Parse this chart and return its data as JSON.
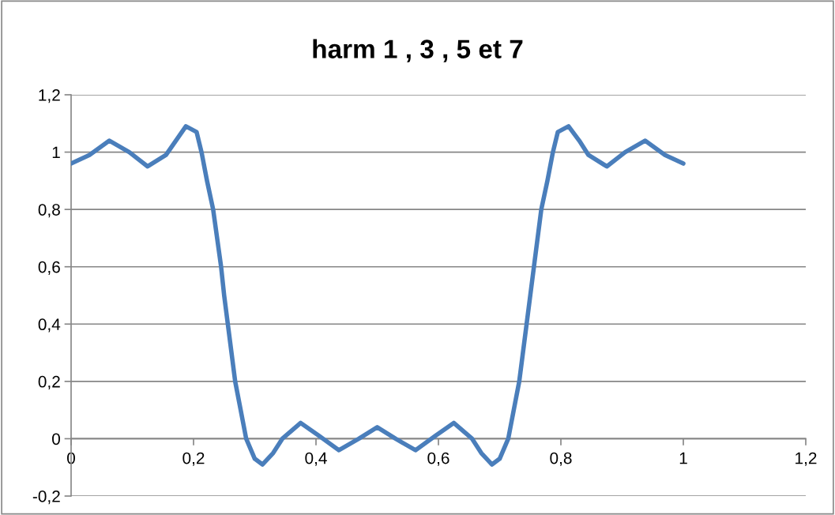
{
  "chart_data": {
    "type": "line",
    "title": "harm 1 , 3 , 5 et 7",
    "x": [
      0,
      0.03,
      0.0625,
      0.095,
      0.125,
      0.155,
      0.1875,
      0.205,
      0.213,
      0.222,
      0.232,
      0.245,
      0.25,
      0.256,
      0.268,
      0.286,
      0.3,
      0.3125,
      0.33,
      0.345,
      0.375,
      0.405,
      0.4375,
      0.47,
      0.5,
      0.53,
      0.5625,
      0.595,
      0.625,
      0.655,
      0.67,
      0.6875,
      0.7,
      0.714,
      0.732,
      0.744,
      0.75,
      0.756,
      0.768,
      0.778,
      0.787,
      0.795,
      0.8125,
      0.83,
      0.845,
      0.875,
      0.905,
      0.9375,
      0.97,
      1
    ],
    "series": [
      {
        "color": "#4a7ebb",
        "values": [
          0.96,
          0.99,
          1.04,
          1.0,
          0.95,
          0.99,
          1.09,
          1.07,
          1.0,
          0.9,
          0.8,
          0.6,
          0.5,
          0.4,
          0.2,
          0.0,
          -0.07,
          -0.09,
          -0.05,
          0.0,
          0.055,
          0.01,
          -0.04,
          0.0,
          0.04,
          0.0,
          -0.04,
          0.01,
          0.055,
          0.0,
          -0.05,
          -0.09,
          -0.07,
          0.0,
          0.2,
          0.4,
          0.5,
          0.6,
          0.8,
          0.9,
          1.0,
          1.07,
          1.09,
          1.04,
          0.99,
          0.95,
          1.0,
          1.04,
          0.99,
          0.96
        ]
      }
    ],
    "xlim": [
      0,
      1.2
    ],
    "xticks": [
      0,
      {
        "value": 0.2,
        "label": "0,2"
      },
      {
        "value": 0.4,
        "label": "0,4"
      },
      {
        "value": 0.6,
        "label": "0,6"
      },
      {
        "value": 0.8,
        "label": "0,8"
      },
      1,
      {
        "value": 1.2,
        "label": "1,2"
      }
    ],
    "ylim": [
      -0.2,
      1.2
    ],
    "yticks": [
      {
        "value": -0.2,
        "label": "-0,2"
      },
      0,
      {
        "value": 0.2,
        "label": "0,2"
      },
      {
        "value": 0.4,
        "label": "0,4"
      },
      {
        "value": 0.6,
        "label": "0,6"
      },
      {
        "value": 0.8,
        "label": "0,8"
      },
      1,
      {
        "value": 1.2,
        "label": "1,2"
      }
    ],
    "grid": "y",
    "marker": "none",
    "line_style": "solid"
  }
}
